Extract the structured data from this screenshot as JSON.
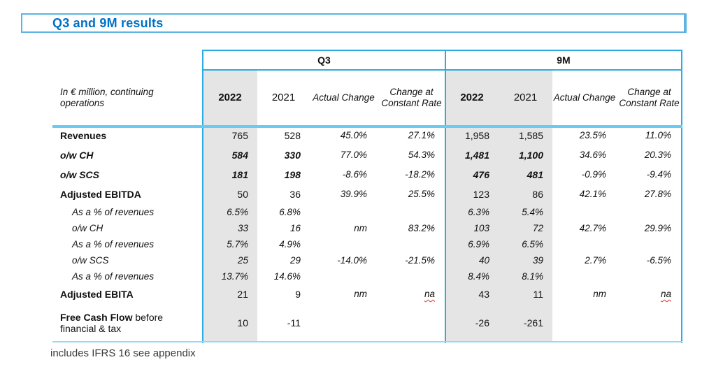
{
  "title": "Q3 and 9M results",
  "footnote": "includes IFRS 16 see appendix",
  "colors": {
    "title_blue": "#0071C5",
    "rule_cyan": "#2BACE2",
    "rule_light_cyan": "#69CBF2",
    "shade_gray": "#E5E5E5",
    "spellcheck_red": "#E0312B"
  },
  "table": {
    "unit_label": "In € million, continuing operations",
    "sections": {
      "q3": "Q3",
      "m9": "9M"
    },
    "columns": {
      "y2022": "2022",
      "y2021": "2021",
      "actual": "Actual Change",
      "constant": "Change at Constant Rate"
    },
    "rows": [
      {
        "label": "Revenues",
        "cells": [
          "765",
          "528",
          "45.0%",
          "27.1%",
          "1,958",
          "1,585",
          "23.5%",
          "11.0%"
        ]
      },
      {
        "label": "o/w CH",
        "cells": [
          "584",
          "330",
          "77.0%",
          "54.3%",
          "1,481",
          "1,100",
          "34.6%",
          "20.3%"
        ]
      },
      {
        "label": "o/w SCS",
        "cells": [
          "181",
          "198",
          "-8.6%",
          "-18.2%",
          "476",
          "481",
          "-0.9%",
          "-9.4%"
        ]
      },
      {
        "label": "Adjusted EBITDA",
        "cells": [
          "50",
          "36",
          "39.9%",
          "25.5%",
          "123",
          "86",
          "42.1%",
          "27.8%"
        ]
      },
      {
        "label": "As a % of revenues",
        "cells": [
          "6.5%",
          "6.8%",
          "",
          "",
          "6.3%",
          "5.4%",
          "",
          ""
        ]
      },
      {
        "label": "o/w CH",
        "cells": [
          "33",
          "16",
          "nm",
          "83.2%",
          "103",
          "72",
          "42.7%",
          "29.9%"
        ]
      },
      {
        "label": "As a % of revenues",
        "cells": [
          "5.7%",
          "4.9%",
          "",
          "",
          "6.9%",
          "6.5%",
          "",
          ""
        ]
      },
      {
        "label": "o/w SCS",
        "cells": [
          "25",
          "29",
          "-14.0%",
          "-21.5%",
          "40",
          "39",
          "2.7%",
          "-6.5%"
        ]
      },
      {
        "label": "As a % of revenues",
        "cells": [
          "13.7%",
          "14.6%",
          "",
          "",
          "8.4%",
          "8.1%",
          "",
          ""
        ]
      },
      {
        "label": "Adjusted EBITA",
        "cells": [
          "21",
          "9",
          "nm",
          "na",
          "43",
          "11",
          "nm",
          "na"
        ]
      },
      {
        "label_bold": "Free Cash Flow",
        "label_rest": " before financial & tax",
        "cells": [
          "10",
          "-11",
          "",
          "",
          "-26",
          "-261",
          "",
          ""
        ]
      }
    ]
  }
}
